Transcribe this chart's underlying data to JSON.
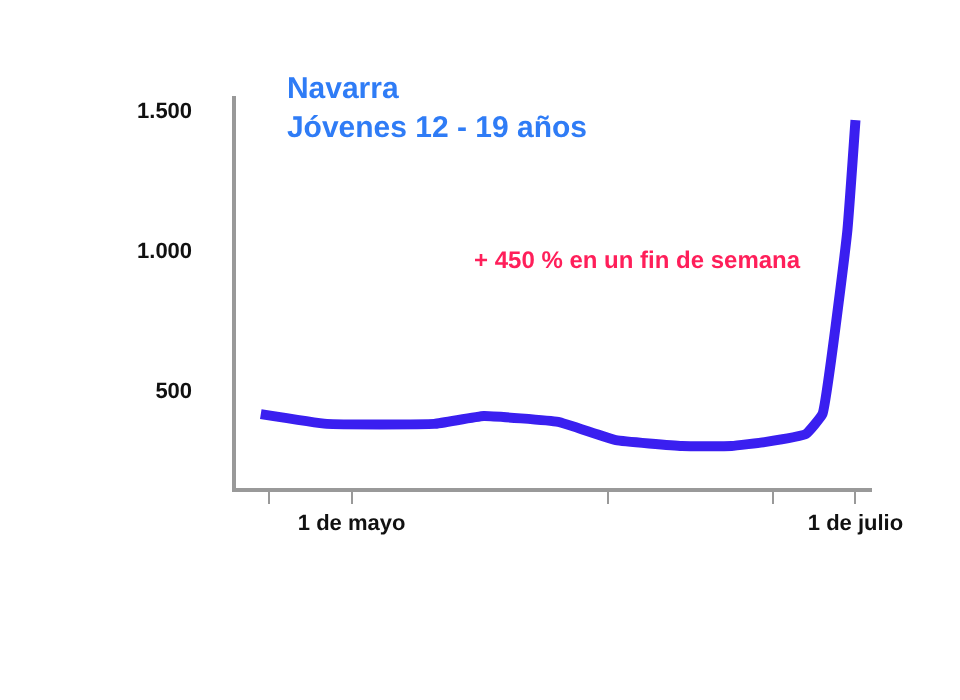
{
  "chart_data": {
    "type": "line",
    "title": "Navarra\nJóvenes 12 - 19 años",
    "x": [
      "--04-20",
      "--04-28",
      "--05-11",
      "--05-17",
      "--05-26",
      "--06-02",
      "--06-10",
      "--06-16",
      "--06-20",
      "--06-25",
      "--06-27",
      "--06-30",
      "--07-01"
    ],
    "series": [
      {
        "color": "#3a1ff0",
        "values": [
          414,
          379,
          379,
          407,
          386,
          321,
          300,
          300,
          314,
          343,
          414,
          1064,
          1464
        ]
      }
    ],
    "xlim": [
      "--04-17",
      "--07-03"
    ],
    "xticks": [
      {
        "value": "--04-21",
        "label": null
      },
      {
        "value": "--05-01",
        "label": "1 de mayo"
      },
      {
        "value": "--06-01",
        "label": null
      },
      {
        "value": "--06-21",
        "label": null
      },
      {
        "value": "--07-01",
        "label": "1 de julio"
      }
    ],
    "ylim": [
      150,
      1550
    ],
    "yticks": [
      {
        "value": 500,
        "label": "500"
      },
      {
        "value": 1000,
        "label": "1.000"
      },
      {
        "value": 1500,
        "label": "1.500"
      }
    ],
    "annotations": [
      "+ 450 % en un fin de semana"
    ],
    "legend": false,
    "marker": "none",
    "line_style": "solid"
  }
}
